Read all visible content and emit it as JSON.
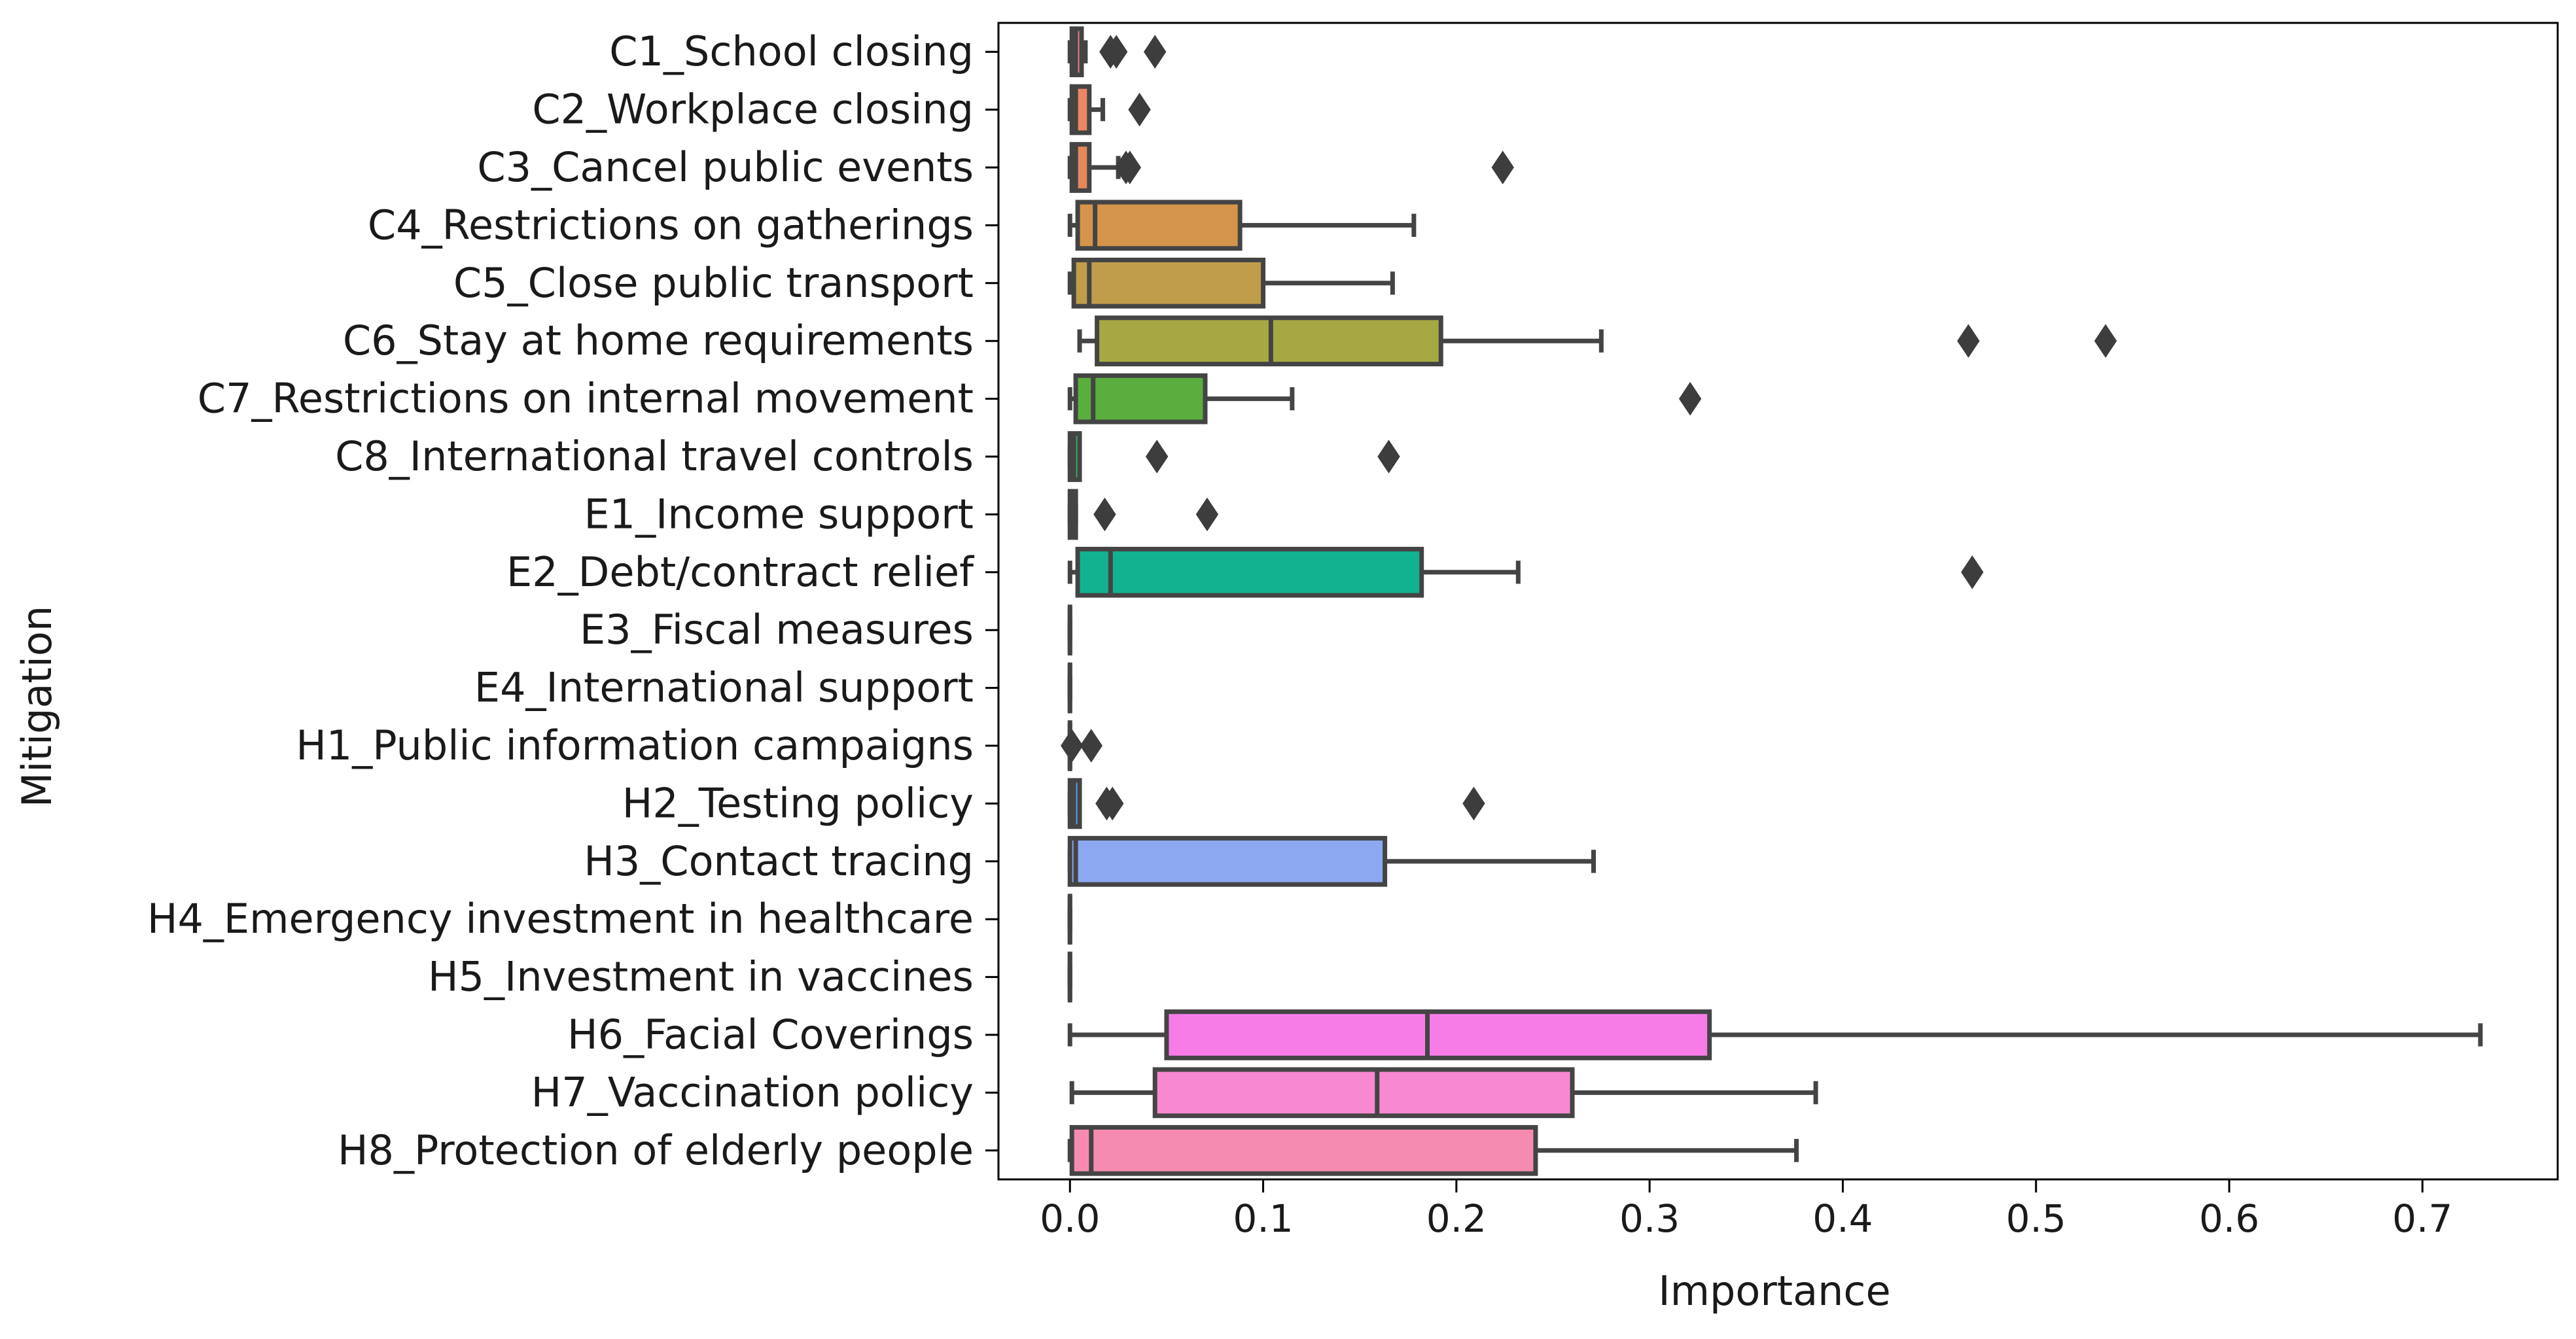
{
  "chart_data": {
    "type": "boxplot",
    "orientation": "horizontal",
    "title": "",
    "xlabel": "Importance",
    "ylabel": "Mitigation",
    "xlim": [
      -0.037,
      0.77
    ],
    "xticks": [
      0.0,
      0.1,
      0.2,
      0.3,
      0.4,
      0.5,
      0.6,
      0.7
    ],
    "xtick_labels": [
      "0.0",
      "0.1",
      "0.2",
      "0.3",
      "0.4",
      "0.5",
      "0.6",
      "0.7"
    ],
    "categories": [
      {
        "label": "C1_School closing",
        "color": "#e9828e",
        "q1": 0.001,
        "median": 0.003,
        "q3": 0.006,
        "whisker_low": 0.0,
        "whisker_high": 0.008,
        "outliers": [
          0.021,
          0.024,
          0.044
        ]
      },
      {
        "label": "C2_Workplace closing",
        "color": "#ec8663",
        "q1": 0.001,
        "median": 0.003,
        "q3": 0.01,
        "whisker_low": 0.0,
        "whisker_high": 0.017,
        "outliers": [
          0.036
        ]
      },
      {
        "label": "C3_Cancel public events",
        "color": "#e4895b",
        "q1": 0.001,
        "median": 0.003,
        "q3": 0.01,
        "whisker_low": 0.0,
        "whisker_high": 0.025,
        "outliers": [
          0.029,
          0.031,
          0.224
        ]
      },
      {
        "label": "C4_Restrictions on gatherings",
        "color": "#d4954b",
        "q1": 0.004,
        "median": 0.013,
        "q3": 0.088,
        "whisker_low": 0.0,
        "whisker_high": 0.178,
        "outliers": []
      },
      {
        "label": "C5_Close public transport",
        "color": "#c09d4a",
        "q1": 0.002,
        "median": 0.01,
        "q3": 0.1,
        "whisker_low": 0.0,
        "whisker_high": 0.167,
        "outliers": []
      },
      {
        "label": "C6_Stay at home requirements",
        "color": "#a6a843",
        "q1": 0.014,
        "median": 0.104,
        "q3": 0.192,
        "whisker_low": 0.005,
        "whisker_high": 0.275,
        "outliers": [
          0.465,
          0.536
        ]
      },
      {
        "label": "C7_Restrictions on internal movement",
        "color": "#5aae3e",
        "q1": 0.003,
        "median": 0.012,
        "q3": 0.07,
        "whisker_low": 0.0,
        "whisker_high": 0.115,
        "outliers": [
          0.321
        ]
      },
      {
        "label": "C8_International travel controls",
        "color": "#3aab63",
        "q1": 0.0,
        "median": 0.002,
        "q3": 0.005,
        "whisker_low": 0.0,
        "whisker_high": 0.005,
        "outliers": [
          0.045,
          0.165
        ]
      },
      {
        "label": "E1_Income support",
        "color": "#36ad86",
        "q1": 0.0,
        "median": 0.001,
        "q3": 0.003,
        "whisker_low": 0.0,
        "whisker_high": 0.003,
        "outliers": [
          0.018,
          0.071
        ]
      },
      {
        "label": "E2_Debt/contract relief",
        "color": "#12b290",
        "q1": 0.004,
        "median": 0.021,
        "q3": 0.182,
        "whisker_low": 0.0,
        "whisker_high": 0.232,
        "outliers": [
          0.467
        ]
      },
      {
        "label": "E3_Fiscal measures",
        "color": "#29b0ab",
        "q1": 0.0,
        "median": 0.0,
        "q3": 0.0,
        "whisker_low": 0.0,
        "whisker_high": 0.0,
        "outliers": []
      },
      {
        "label": "E4_International support",
        "color": "#36aec8",
        "q1": 0.0,
        "median": 0.0,
        "q3": 0.0,
        "whisker_low": 0.0,
        "whisker_high": 0.0,
        "outliers": []
      },
      {
        "label": "H1_Public information campaigns",
        "color": "#3aa9df",
        "q1": 0.0,
        "median": 0.0,
        "q3": 0.0,
        "whisker_low": 0.0,
        "whisker_high": 0.0,
        "outliers": [
          0.001,
          0.011
        ]
      },
      {
        "label": "H2_Testing policy",
        "color": "#5aa5ee",
        "q1": 0.0,
        "median": 0.002,
        "q3": 0.005,
        "whisker_low": 0.0,
        "whisker_high": 0.005,
        "outliers": [
          0.019,
          0.022,
          0.209
        ]
      },
      {
        "label": "H3_Contact tracing",
        "color": "#8ca8f0",
        "q1": 0.0,
        "median": 0.003,
        "q3": 0.163,
        "whisker_low": 0.0,
        "whisker_high": 0.271,
        "outliers": []
      },
      {
        "label": "H4_Emergency investment in healthcare",
        "color": "#b49bf3",
        "q1": 0.0,
        "median": 0.0,
        "q3": 0.0,
        "whisker_low": 0.0,
        "whisker_high": 0.0,
        "outliers": []
      },
      {
        "label": "H5_Investment in vaccines",
        "color": "#d891f0",
        "q1": 0.0,
        "median": 0.0,
        "q3": 0.0,
        "whisker_low": 0.0,
        "whisker_high": 0.0,
        "outliers": []
      },
      {
        "label": "H6_Facial Coverings",
        "color": "#f77ce8",
        "q1": 0.05,
        "median": 0.185,
        "q3": 0.331,
        "whisker_low": 0.0,
        "whisker_high": 0.73,
        "outliers": []
      },
      {
        "label": "H7_Vaccination policy",
        "color": "#f888d0",
        "q1": 0.044,
        "median": 0.159,
        "q3": 0.26,
        "whisker_low": 0.001,
        "whisker_high": 0.386,
        "outliers": []
      },
      {
        "label": "H8_Protection of elderly people",
        "color": "#f58bb0",
        "q1": 0.001,
        "median": 0.011,
        "q3": 0.241,
        "whisker_low": 0.0,
        "whisker_high": 0.376,
        "outliers": []
      }
    ]
  }
}
